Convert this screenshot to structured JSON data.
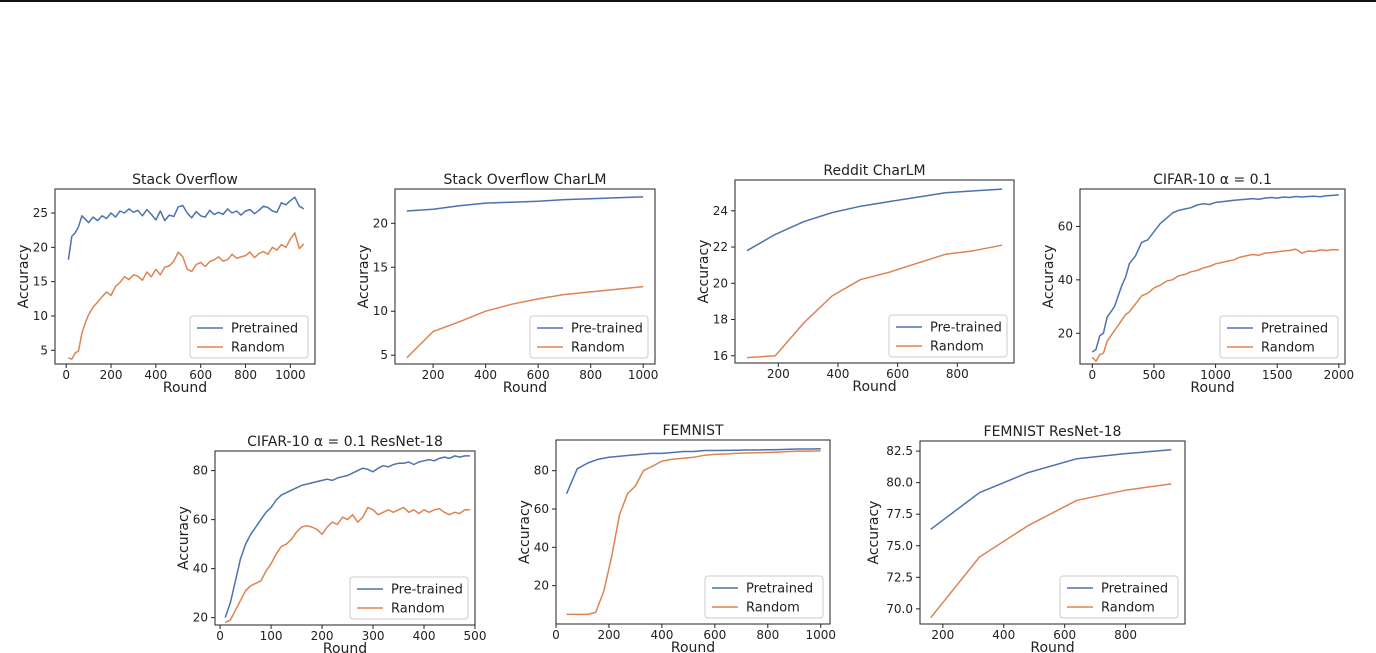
{
  "figure": {
    "axis_label_text": "Accuracy",
    "x_label_text": "Round"
  },
  "chart_data": [
    {
      "id": "so",
      "type": "line",
      "title": "Stack Overflow",
      "xlabel": "Round",
      "ylabel": "Accuracy",
      "xlim": [
        -50,
        1110
      ],
      "ylim": [
        3.0,
        28.5
      ],
      "xticks": [
        0,
        200,
        400,
        600,
        800,
        1000
      ],
      "yticks": [
        5,
        10,
        15,
        20,
        25
      ],
      "legend_loc": "lower-right",
      "series": [
        {
          "name": "Pretrained",
          "color": "#4c72b0",
          "x": [
            10,
            25,
            40,
            55,
            70,
            85,
            100,
            120,
            140,
            160,
            180,
            200,
            220,
            240,
            260,
            280,
            300,
            320,
            340,
            360,
            380,
            400,
            420,
            440,
            460,
            480,
            500,
            520,
            540,
            560,
            580,
            600,
            620,
            640,
            660,
            680,
            700,
            720,
            740,
            760,
            780,
            800,
            820,
            840,
            860,
            880,
            900,
            920,
            940,
            960,
            980,
            1000,
            1020,
            1040,
            1060
          ],
          "y": [
            18.2,
            21.6,
            22.1,
            23.0,
            24.6,
            24.1,
            23.6,
            24.4,
            23.9,
            24.6,
            24.2,
            25.0,
            24.4,
            25.3,
            25.0,
            25.6,
            25.1,
            25.4,
            24.6,
            25.5,
            24.8,
            24.0,
            25.3,
            23.9,
            24.7,
            24.5,
            25.9,
            26.1,
            25.0,
            24.3,
            25.2,
            24.6,
            24.4,
            25.4,
            24.8,
            25.1,
            24.8,
            25.6,
            25.0,
            25.3,
            24.7,
            25.3,
            25.5,
            24.9,
            25.4,
            26.0,
            25.8,
            25.3,
            25.1,
            26.5,
            26.2,
            26.8,
            27.3,
            26.0,
            25.6
          ]
        },
        {
          "name": "Random",
          "color": "#dd8452",
          "x": [
            10,
            25,
            40,
            55,
            70,
            85,
            100,
            120,
            140,
            160,
            180,
            200,
            220,
            240,
            260,
            280,
            300,
            320,
            340,
            360,
            380,
            400,
            420,
            440,
            460,
            480,
            500,
            520,
            540,
            560,
            580,
            600,
            620,
            640,
            660,
            680,
            700,
            720,
            740,
            760,
            780,
            800,
            820,
            840,
            860,
            880,
            900,
            920,
            940,
            960,
            980,
            1000,
            1020,
            1040,
            1060
          ],
          "y": [
            3.9,
            3.7,
            4.6,
            4.9,
            7.5,
            9.0,
            10.2,
            11.3,
            12.0,
            12.8,
            13.5,
            13.0,
            14.3,
            14.9,
            15.7,
            15.3,
            16.0,
            15.8,
            15.2,
            16.4,
            15.7,
            16.8,
            16.0,
            17.1,
            17.3,
            18.0,
            19.3,
            18.6,
            16.8,
            16.5,
            17.5,
            17.8,
            17.2,
            17.9,
            18.2,
            18.6,
            18.0,
            18.2,
            19.0,
            18.4,
            18.6,
            18.8,
            19.3,
            18.5,
            19.1,
            19.4,
            19.0,
            20.0,
            19.6,
            20.4,
            20.0,
            21.2,
            22.1,
            19.8,
            20.5
          ]
        }
      ]
    },
    {
      "id": "socharlm",
      "type": "line",
      "title": "Stack Overflow CharLM",
      "xlabel": "Round",
      "ylabel": "Accuracy",
      "xlim": [
        55,
        1045
      ],
      "ylim": [
        4.0,
        23.9
      ],
      "xticks": [
        200,
        400,
        600,
        800,
        1000
      ],
      "yticks": [
        5,
        10,
        15,
        20
      ],
      "legend_loc": "lower-right",
      "series": [
        {
          "name": "Pre-trained",
          "color": "#4c72b0",
          "x": [
            100,
            200,
            300,
            400,
            500,
            600,
            700,
            800,
            900,
            1000
          ],
          "y": [
            21.4,
            21.6,
            22.0,
            22.3,
            22.4,
            22.5,
            22.7,
            22.8,
            22.9,
            23.0
          ]
        },
        {
          "name": "Random",
          "color": "#dd8452",
          "x": [
            100,
            200,
            300,
            400,
            500,
            600,
            700,
            800,
            900,
            1000
          ],
          "y": [
            4.7,
            7.7,
            8.8,
            10.0,
            10.8,
            11.4,
            11.9,
            12.2,
            12.5,
            12.8
          ]
        }
      ]
    },
    {
      "id": "reddit",
      "type": "line",
      "title": "Reddit CharLM",
      "xlabel": "Round",
      "ylabel": "Accuracy",
      "xlim": [
        55,
        990
      ],
      "ylim": [
        15.6,
        25.7
      ],
      "xticks": [
        200,
        400,
        600,
        800
      ],
      "yticks": [
        16,
        18,
        20,
        22,
        24
      ],
      "legend_loc": "lower-right",
      "series": [
        {
          "name": "Pre-trained",
          "color": "#4c72b0",
          "x": [
            95,
            190,
            285,
            380,
            475,
            570,
            665,
            760,
            855,
            950
          ],
          "y": [
            21.8,
            22.7,
            23.4,
            23.9,
            24.25,
            24.5,
            24.75,
            25.0,
            25.1,
            25.2
          ]
        },
        {
          "name": "Random",
          "color": "#dd8452",
          "x": [
            95,
            190,
            285,
            380,
            475,
            570,
            665,
            760,
            855,
            950
          ],
          "y": [
            15.9,
            16.0,
            17.8,
            19.3,
            20.2,
            20.6,
            21.1,
            21.6,
            21.8,
            22.1
          ]
        }
      ]
    },
    {
      "id": "cifar",
      "type": "line",
      "title": "CIFAR-10 α = 0.1",
      "xlabel": "Round",
      "ylabel": "Accuracy",
      "xlim": [
        -100,
        2050
      ],
      "ylim": [
        8.5,
        74.0
      ],
      "xticks": [
        0,
        500,
        1000,
        1500,
        2000
      ],
      "yticks": [
        20,
        40,
        60
      ],
      "legend_loc": "lower-right",
      "series": [
        {
          "name": "Pretrained",
          "color": "#4c72b0",
          "x": [
            0,
            30,
            60,
            90,
            120,
            150,
            180,
            210,
            240,
            270,
            300,
            350,
            400,
            450,
            500,
            550,
            600,
            650,
            700,
            750,
            800,
            850,
            900,
            950,
            1000,
            1050,
            1100,
            1150,
            1200,
            1250,
            1300,
            1350,
            1400,
            1450,
            1500,
            1550,
            1600,
            1650,
            1700,
            1750,
            1800,
            1850,
            1900,
            1950,
            2000
          ],
          "y": [
            13,
            14,
            19,
            20,
            26,
            28,
            30,
            34,
            38,
            41,
            46,
            49,
            54,
            55,
            58,
            61,
            63,
            65,
            66,
            66.5,
            67,
            68,
            68.5,
            68.2,
            69,
            69.2,
            69.5,
            69.8,
            70,
            70.2,
            70.4,
            70.2,
            70.6,
            70.8,
            70.6,
            71,
            70.8,
            71.2,
            71.0,
            71.2,
            71.3,
            71.1,
            71.5,
            71.6,
            71.8
          ]
        },
        {
          "name": "Random",
          "color": "#dd8452",
          "x": [
            0,
            30,
            60,
            90,
            120,
            150,
            180,
            210,
            240,
            270,
            300,
            350,
            400,
            450,
            500,
            550,
            600,
            650,
            700,
            750,
            800,
            850,
            900,
            950,
            1000,
            1050,
            1100,
            1150,
            1200,
            1250,
            1300,
            1350,
            1400,
            1450,
            1500,
            1550,
            1600,
            1650,
            1700,
            1750,
            1800,
            1850,
            1900,
            1950,
            2000
          ],
          "y": [
            11,
            9.5,
            12,
            12.5,
            17,
            19,
            21,
            23,
            25,
            27,
            28,
            31,
            34,
            35,
            37,
            38,
            39.5,
            40,
            41.5,
            42,
            43,
            43.5,
            44.5,
            45,
            46,
            46.5,
            47,
            47.5,
            48.5,
            49,
            49.5,
            49.2,
            50,
            50.2,
            50.5,
            50.8,
            51,
            51.5,
            50.0,
            50.8,
            50.6,
            51.2,
            51.0,
            51.3,
            51.2
          ]
        }
      ]
    },
    {
      "id": "cifar_resnet",
      "type": "line",
      "title": "CIFAR-10 α = 0.1 ResNet-18",
      "xlabel": "Round",
      "ylabel": "Accuracy",
      "xlim": [
        -10,
        500
      ],
      "ylim": [
        17,
        88
      ],
      "xticks": [
        0,
        100,
        200,
        300,
        400,
        500
      ],
      "yticks": [
        20,
        40,
        60,
        80
      ],
      "legend_loc": "lower-right",
      "series": [
        {
          "name": "Pre-trained",
          "color": "#4c72b0",
          "x": [
            10,
            20,
            30,
            40,
            50,
            60,
            70,
            80,
            90,
            100,
            110,
            120,
            130,
            140,
            150,
            160,
            170,
            180,
            190,
            200,
            210,
            220,
            230,
            240,
            250,
            260,
            270,
            280,
            290,
            300,
            310,
            320,
            330,
            340,
            350,
            360,
            370,
            380,
            390,
            400,
            410,
            420,
            430,
            440,
            450,
            460,
            470,
            480,
            490
          ],
          "y": [
            20,
            26,
            35,
            44,
            50,
            54,
            57,
            60,
            63,
            65,
            68,
            70,
            71,
            72,
            73,
            74,
            74.5,
            75,
            75.5,
            76,
            76.5,
            76,
            77,
            77.5,
            78,
            79,
            80,
            81,
            80.5,
            79.5,
            81,
            82,
            81.5,
            82.5,
            83,
            83,
            83.5,
            82.5,
            83.5,
            84,
            84.5,
            84,
            85,
            85.5,
            85,
            86,
            85.5,
            86,
            86
          ]
        },
        {
          "name": "Random",
          "color": "#dd8452",
          "x": [
            10,
            20,
            30,
            40,
            50,
            60,
            70,
            80,
            90,
            100,
            110,
            120,
            130,
            140,
            150,
            160,
            170,
            180,
            190,
            200,
            210,
            220,
            230,
            240,
            250,
            260,
            270,
            280,
            290,
            300,
            310,
            320,
            330,
            340,
            350,
            360,
            370,
            380,
            390,
            400,
            410,
            420,
            430,
            440,
            450,
            460,
            470,
            480,
            490
          ],
          "y": [
            18,
            19,
            23,
            27,
            31,
            33,
            34,
            35,
            39,
            42,
            46,
            49,
            50,
            52,
            55,
            57,
            57.5,
            57,
            56,
            54,
            57,
            59,
            58,
            61,
            60,
            62,
            59,
            61,
            65,
            64,
            62,
            63,
            64,
            63,
            64,
            65,
            63,
            64,
            62.5,
            64,
            63,
            64,
            64.5,
            63,
            62,
            63,
            62.5,
            64,
            64
          ]
        }
      ]
    },
    {
      "id": "femnist",
      "type": "line",
      "title": "FEMNIST",
      "xlabel": "Round",
      "ylabel": "Accuracy",
      "xlim": [
        0,
        1035
      ],
      "ylim": [
        0,
        96
      ],
      "xticks": [
        0,
        200,
        400,
        600,
        800,
        1000
      ],
      "yticks": [
        20,
        40,
        60,
        80
      ],
      "legend_loc": "lower-right",
      "series": [
        {
          "name": "Pretrained",
          "color": "#4c72b0",
          "x": [
            40,
            80,
            120,
            160,
            200,
            240,
            280,
            320,
            360,
            400,
            440,
            480,
            520,
            560,
            600,
            640,
            680,
            720,
            760,
            800,
            840,
            880,
            920,
            960,
            1000
          ],
          "y": [
            68,
            81,
            84,
            86,
            87,
            87.5,
            88,
            88.5,
            89,
            89,
            89.5,
            90,
            90,
            90.5,
            90.5,
            90.6,
            90.7,
            90.8,
            90.8,
            90.9,
            91,
            91.2,
            91.3,
            91.3,
            91.4
          ]
        },
        {
          "name": "Random",
          "color": "#dd8452",
          "x": [
            40,
            80,
            120,
            150,
            180,
            210,
            240,
            270,
            300,
            330,
            360,
            400,
            440,
            480,
            520,
            560,
            600,
            640,
            680,
            720,
            760,
            800,
            840,
            880,
            920,
            960,
            1000
          ],
          "y": [
            5,
            5,
            5,
            6,
            17,
            35,
            57,
            68,
            72,
            80,
            82,
            85,
            86,
            86.5,
            87,
            88,
            88.5,
            88.7,
            89,
            89.2,
            89.3,
            89.5,
            89.7,
            90,
            90.2,
            90.2,
            90.3
          ]
        }
      ]
    },
    {
      "id": "femnist_resnet",
      "type": "line",
      "title": "FEMNIST ResNet-18",
      "xlabel": "Round",
      "ylabel": "Accuracy",
      "xlim": [
        125,
        995
      ],
      "ylim": [
        68.8,
        83.3
      ],
      "xticks": [
        200,
        400,
        600,
        800
      ],
      "yticks": [
        70.0,
        72.5,
        75.0,
        77.5,
        80.0,
        82.5
      ],
      "legend_loc": "lower-right",
      "series": [
        {
          "name": "Pretrained",
          "color": "#4c72b0",
          "x": [
            160,
            320,
            480,
            640,
            800,
            950
          ],
          "y": [
            76.3,
            79.2,
            80.8,
            81.9,
            82.3,
            82.6
          ]
        },
        {
          "name": "Random",
          "color": "#dd8452",
          "x": [
            160,
            320,
            480,
            640,
            800,
            950
          ],
          "y": [
            69.3,
            74.1,
            76.6,
            78.6,
            79.4,
            79.9
          ]
        }
      ]
    }
  ]
}
